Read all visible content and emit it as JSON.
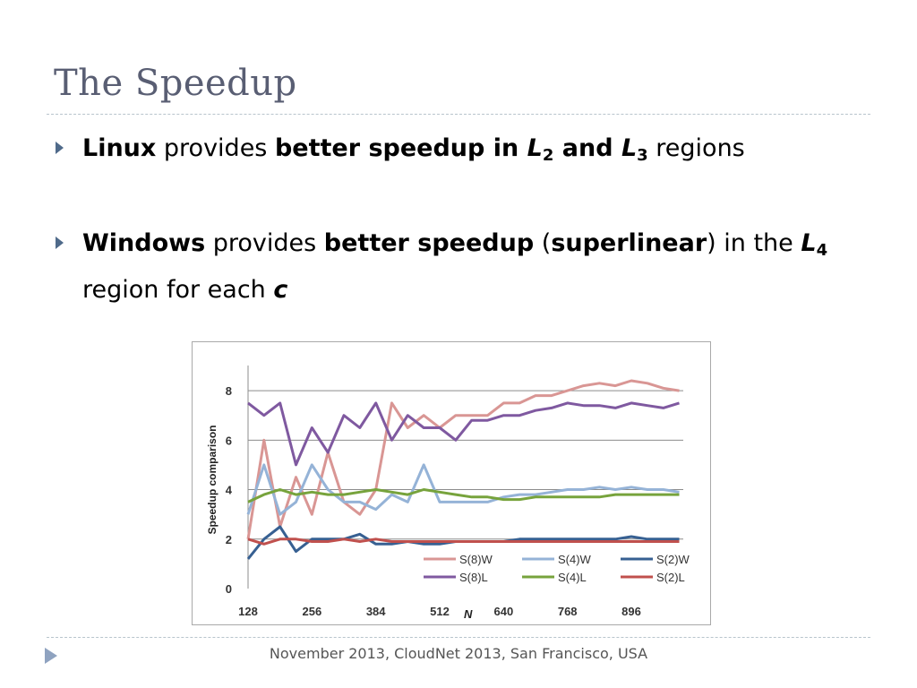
{
  "slide": {
    "title": "The Speedup",
    "footer": "November 2013, CloudNet 2013, San Francisco, USA",
    "bullets": [
      {
        "parts": [
          "Linux",
          " provides ",
          "better speedup in ",
          "L",
          "2",
          " and ",
          "L",
          "3",
          " regions"
        ]
      },
      {
        "parts": [
          "Windows",
          " provides ",
          "better speedup",
          " (",
          "superlinear",
          ") in the ",
          "L",
          "4",
          " region for each ",
          "c"
        ]
      }
    ]
  },
  "chart_data": {
    "type": "line",
    "xlabel": "N",
    "ylabel": "Speedup comparison",
    "x_ticks": [
      "128",
      "256",
      "384",
      "512",
      "640",
      "768",
      "896"
    ],
    "y_ticks": [
      "0",
      "2",
      "4",
      "6",
      "8"
    ],
    "xlim": [
      128,
      1000
    ],
    "ylim": [
      0,
      8.8
    ],
    "grid": "horizontal",
    "legend_position": "bottom-right",
    "x": [
      128,
      160,
      192,
      224,
      256,
      288,
      320,
      352,
      384,
      416,
      448,
      480,
      512,
      544,
      576,
      608,
      640,
      672,
      704,
      736,
      768,
      800,
      832,
      864,
      896,
      928,
      960,
      992
    ],
    "series": [
      {
        "name": "S(8)W",
        "color": "#d99694",
        "values": [
          2.0,
          6.0,
          2.5,
          4.5,
          3.0,
          5.5,
          3.5,
          3.0,
          4.0,
          7.5,
          6.5,
          7.0,
          6.5,
          7.0,
          7.0,
          7.0,
          7.5,
          7.5,
          7.8,
          7.8,
          8.0,
          8.2,
          8.3,
          8.2,
          8.4,
          8.3,
          8.1,
          8.0
        ]
      },
      {
        "name": "S(4)W",
        "color": "#95b3d7",
        "values": [
          3.0,
          5.0,
          3.0,
          3.5,
          5.0,
          4.0,
          3.5,
          3.5,
          3.2,
          3.8,
          3.5,
          5.0,
          3.5,
          3.5,
          3.5,
          3.5,
          3.7,
          3.8,
          3.8,
          3.9,
          4.0,
          4.0,
          4.1,
          4.0,
          4.1,
          4.0,
          4.0,
          3.9
        ]
      },
      {
        "name": "S(2)W",
        "color": "#376092",
        "values": [
          1.2,
          2.0,
          2.5,
          1.5,
          2.0,
          2.0,
          2.0,
          2.2,
          1.8,
          1.8,
          1.9,
          1.8,
          1.8,
          1.9,
          1.9,
          1.9,
          1.9,
          2.0,
          2.0,
          2.0,
          2.0,
          2.0,
          2.0,
          2.0,
          2.1,
          2.0,
          2.0,
          2.0
        ]
      },
      {
        "name": "S(8)L",
        "color": "#7f59a0",
        "values": [
          7.5,
          7.0,
          7.5,
          5.0,
          6.5,
          5.5,
          7.0,
          6.5,
          7.5,
          6.0,
          7.0,
          6.5,
          6.5,
          6.0,
          6.8,
          6.8,
          7.0,
          7.0,
          7.2,
          7.3,
          7.5,
          7.4,
          7.4,
          7.3,
          7.5,
          7.4,
          7.3,
          7.5
        ]
      },
      {
        "name": "S(4)L",
        "color": "#77a33c",
        "values": [
          3.5,
          3.8,
          4.0,
          3.8,
          3.9,
          3.8,
          3.8,
          3.9,
          4.0,
          3.9,
          3.8,
          4.0,
          3.9,
          3.8,
          3.7,
          3.7,
          3.6,
          3.6,
          3.7,
          3.7,
          3.7,
          3.7,
          3.7,
          3.8,
          3.8,
          3.8,
          3.8,
          3.8
        ]
      },
      {
        "name": "S(2)L",
        "color": "#c0504d",
        "values": [
          2.0,
          1.8,
          2.0,
          2.0,
          1.9,
          1.9,
          2.0,
          1.9,
          2.0,
          1.9,
          1.9,
          1.9,
          1.9,
          1.9,
          1.9,
          1.9,
          1.9,
          1.9,
          1.9,
          1.9,
          1.9,
          1.9,
          1.9,
          1.9,
          1.9,
          1.9,
          1.9,
          1.9
        ]
      }
    ]
  }
}
